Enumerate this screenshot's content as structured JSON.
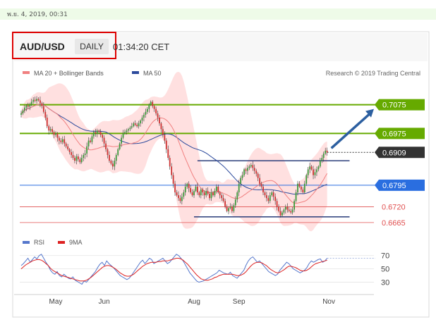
{
  "header": {
    "date_stamp": "พ.ย. 4, 2019, 00:31",
    "pair": "AUD/USD",
    "timeframe": "DAILY",
    "time": "01:34:20 CET"
  },
  "legend": {
    "ma20": "MA 20 + Bollinger Bands",
    "ma50": "MA 50",
    "credit": "Research © 2019 Trading Central"
  },
  "rsi_legend": {
    "rsi": "RSI",
    "nine_ma": "9MA"
  },
  "colors": {
    "resistance": "#66aa00",
    "support": "#2a6ee0",
    "lower_support": "#e05050",
    "current": "#333333",
    "bollinger": "#ffd6d6",
    "ma20": "#f08080",
    "ma50": "#2c4a9c",
    "rsi": "#5577cc",
    "rsi_ma": "#dd2222",
    "candle_up": "#3c9a3c",
    "candle_down": "#cc3333",
    "arrow": "#2c5fa0",
    "highlight_box": "#dd0000"
  },
  "chart_data": [
    {
      "type": "candlestick",
      "title": "AUD/USD",
      "ylim": [
        0.665,
        0.7145
      ],
      "levels": [
        {
          "name": "resistance-2",
          "value": 0.7075,
          "label": "0.7075",
          "kind": "resistance"
        },
        {
          "name": "resistance-1",
          "value": 0.6975,
          "label": "0.6975",
          "kind": "resistance"
        },
        {
          "name": "current-price",
          "value": 0.6909,
          "label": "0.6909",
          "kind": "current"
        },
        {
          "name": "support-1",
          "value": 0.6795,
          "label": "0.6795",
          "kind": "support"
        },
        {
          "name": "support-2",
          "value": 0.672,
          "label": "0.6720",
          "kind": "lower"
        },
        {
          "name": "support-3",
          "value": 0.6665,
          "label": "0.6665",
          "kind": "lower"
        }
      ],
      "range_box": {
        "top": 0.688,
        "bottom": 0.6685,
        "from_index": 102,
        "to_index": 190
      },
      "x_labels": [
        {
          "label": "May",
          "index": 20
        },
        {
          "label": "Jun",
          "index": 48
        },
        {
          "label": "Aug",
          "index": 100
        },
        {
          "label": "Sep",
          "index": 126
        },
        {
          "label": "Nov",
          "index": 178
        }
      ],
      "closes": [
        0.7045,
        0.7055,
        0.7065,
        0.7072,
        0.7068,
        0.7075,
        0.7085,
        0.7092,
        0.7088,
        0.7095,
        0.709,
        0.708,
        0.707,
        0.705,
        0.703,
        0.7,
        0.6985,
        0.699,
        0.698,
        0.697,
        0.6975,
        0.696,
        0.695,
        0.6945,
        0.6955,
        0.694,
        0.693,
        0.692,
        0.691,
        0.69,
        0.689,
        0.688,
        0.6895,
        0.6885,
        0.6875,
        0.689,
        0.69,
        0.6905,
        0.693,
        0.695,
        0.6945,
        0.6965,
        0.698,
        0.6975,
        0.6985,
        0.698,
        0.697,
        0.696,
        0.694,
        0.692,
        0.69,
        0.688,
        0.687,
        0.686,
        0.688,
        0.69,
        0.692,
        0.694,
        0.696,
        0.6975,
        0.698,
        0.6985,
        0.699,
        0.6995,
        0.7,
        0.701,
        0.7005,
        0.7,
        0.701,
        0.702,
        0.703,
        0.704,
        0.705,
        0.706,
        0.7075,
        0.7085,
        0.707,
        0.706,
        0.7045,
        0.703,
        0.701,
        0.699,
        0.697,
        0.695,
        0.692,
        0.689,
        0.686,
        0.683,
        0.68,
        0.677,
        0.676,
        0.675,
        0.674,
        0.6755,
        0.677,
        0.679,
        0.68,
        0.6785,
        0.677,
        0.676,
        0.6775,
        0.679,
        0.677,
        0.676,
        0.678,
        0.677,
        0.676,
        0.6775,
        0.6765,
        0.675,
        0.677,
        0.676,
        0.6775,
        0.679,
        0.677,
        0.676,
        0.675,
        0.674,
        0.672,
        0.6705,
        0.6715,
        0.672,
        0.6705,
        0.6725,
        0.6745,
        0.677,
        0.68,
        0.682,
        0.683,
        0.685,
        0.6845,
        0.6855,
        0.686,
        0.6865,
        0.6855,
        0.6845,
        0.6835,
        0.682,
        0.68,
        0.679,
        0.677,
        0.676,
        0.675,
        0.674,
        0.676,
        0.677,
        0.6755,
        0.674,
        0.672,
        0.6705,
        0.669,
        0.67,
        0.671,
        0.672,
        0.671,
        0.6705,
        0.67,
        0.671,
        0.674,
        0.677,
        0.68,
        0.679,
        0.678,
        0.677,
        0.68,
        0.683,
        0.685,
        0.686,
        0.685,
        0.683,
        0.684,
        0.685,
        0.686,
        0.688,
        0.689,
        0.6905,
        0.6915,
        0.6909
      ]
    },
    {
      "type": "line",
      "title": "RSI",
      "ylim": [
        20,
        75
      ],
      "y_ticks": [
        70,
        50,
        30
      ],
      "series": [
        {
          "name": "RSI",
          "values": [
            55,
            58,
            62,
            66,
            60,
            64,
            68,
            65,
            70,
            72,
            66,
            60,
            55,
            48,
            44,
            42,
            46,
            40,
            38,
            42,
            39,
            36,
            35,
            38,
            33,
            31,
            29,
            27,
            32,
            30,
            34,
            38,
            42,
            46,
            52,
            57,
            60,
            55,
            62,
            58,
            55,
            52,
            48,
            44,
            40,
            38,
            36,
            34,
            36,
            40,
            45,
            50,
            55,
            60,
            63,
            58,
            62,
            66,
            64,
            58,
            60,
            62,
            64,
            66,
            62,
            58,
            60,
            64,
            68,
            72,
            70,
            66,
            62,
            56,
            50,
            44,
            40,
            36,
            32,
            30,
            31,
            32,
            34,
            36,
            38,
            40,
            42,
            44,
            48,
            46,
            44,
            43,
            42,
            45,
            40,
            38,
            36,
            40,
            44,
            48,
            56,
            62,
            66,
            68,
            64,
            60,
            62,
            58,
            54,
            50,
            46,
            44,
            42,
            40,
            42,
            48,
            52,
            56,
            60,
            58,
            54,
            50,
            48,
            46,
            44,
            46,
            48,
            52,
            58,
            62,
            60,
            62,
            64,
            65,
            60,
            62,
            66
          ]
        },
        {
          "name": "9MA",
          "values": [
            50,
            53,
            56,
            58,
            60,
            62,
            63,
            64,
            64,
            63,
            61,
            58,
            55,
            51,
            48,
            46,
            44,
            42,
            40,
            39,
            38,
            37,
            36,
            35,
            34,
            33,
            32,
            32,
            32,
            33,
            35,
            37,
            40,
            43,
            46,
            49,
            52,
            54,
            55,
            55,
            54,
            52,
            50,
            47,
            44,
            42,
            40,
            39,
            39,
            40,
            42,
            45,
            48,
            51,
            54,
            56,
            58,
            59,
            60,
            60,
            60,
            61,
            61,
            62,
            62,
            62,
            63,
            64,
            65,
            66,
            66,
            65,
            63,
            60,
            57,
            53,
            49,
            45,
            41,
            38,
            35,
            34,
            33,
            33,
            34,
            35,
            37,
            38,
            40,
            41,
            42,
            42,
            42,
            42,
            42,
            41,
            40,
            40,
            41,
            43,
            46,
            50,
            54,
            57,
            59,
            60,
            60,
            59,
            57,
            55,
            52,
            49,
            47,
            45,
            44,
            45,
            47,
            49,
            52,
            54,
            54,
            53,
            52,
            50,
            48,
            47,
            47,
            48,
            50,
            53,
            56,
            58,
            59,
            60,
            61,
            62,
            63
          ]
        }
      ]
    }
  ],
  "x_axis": {
    "may": "May",
    "jun": "Jun",
    "aug": "Aug",
    "sep": "Sep",
    "nov": "Nov"
  }
}
